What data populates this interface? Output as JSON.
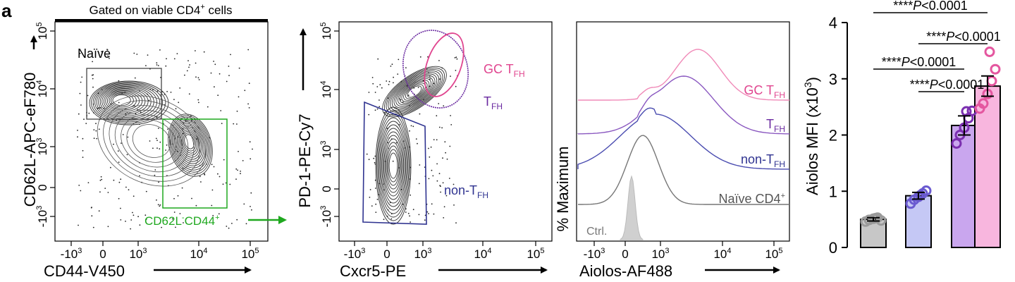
{
  "panel_label": "a",
  "gate_header": "Gated on viable CD4",
  "gate_header_sup": "+",
  "gate_header_tail": " cells",
  "flow1": {
    "ylabel": "CD62L-APC-eF780",
    "xlabel": "CD44-V450",
    "naive_label": "Naïve",
    "effector_label": "CD62L",
    "effector_sup1": "-",
    "effector_mid": "CD44",
    "effector_sup2": "+"
  },
  "flow2": {
    "ylabel": "PD-1-PE-Cy7",
    "xlabel": "Cxcr5-PE",
    "gc_label": "GC T",
    "gc_sub": "FH",
    "tfh_label": "T",
    "tfh_sub": "FH",
    "nontfh_label": "non-T",
    "nontfh_sub": "FH"
  },
  "flow3": {
    "ylabel": "% Maximum",
    "xlabel": "Aiolos-AF488",
    "labels": [
      {
        "text": "GC T",
        "sub": "FH",
        "color": "#e0458f"
      },
      {
        "text": "T",
        "sub": "FH",
        "color": "#6a2aa0"
      },
      {
        "text": "non-T",
        "sub": "FH",
        "color": "#2f3390"
      },
      {
        "text": "Naïve CD4",
        "sup": "+",
        "color": "#555555"
      },
      {
        "text": "Ctrl.",
        "color": "#777777"
      }
    ]
  },
  "flow_ticks": {
    "x": [
      {
        "base": "-10",
        "exp": "3"
      },
      {
        "base": "0",
        "exp": ""
      },
      {
        "base": "10",
        "exp": "3"
      },
      {
        "base": "10",
        "exp": "4"
      },
      {
        "base": "10",
        "exp": "5"
      }
    ],
    "y": [
      {
        "base": "-10",
        "exp": "3"
      },
      {
        "base": "0",
        "exp": ""
      },
      {
        "base": "10",
        "exp": "3"
      },
      {
        "base": "10",
        "exp": "4"
      },
      {
        "base": "10",
        "exp": "5"
      }
    ]
  },
  "chart_data": {
    "type": "bar",
    "ylabel": "Aiolos MFI (x10",
    "ylabel_sup": "3",
    "ylabel_tail": ")",
    "ylim": [
      0,
      4
    ],
    "yticks": [
      0,
      1,
      2,
      3,
      4
    ],
    "categories": [
      "Naïve CD4+",
      "non-TFH",
      "TFH",
      "GC TFH"
    ],
    "values": [
      0.5,
      0.92,
      2.17,
      2.87
    ],
    "errors": [
      0.03,
      0.06,
      0.17,
      0.18
    ],
    "fills": [
      "#c7c7c7",
      "#c5c8f5",
      "#c9a6ee",
      "#f8b6de"
    ],
    "point_colors": [
      "#9a9a9a",
      "#6a5ad0",
      "#7b2fb0",
      "#e4569f"
    ],
    "points": [
      [
        0.46,
        0.49,
        0.51,
        0.53,
        0.48,
        0.52
      ],
      [
        0.78,
        0.85,
        0.9,
        0.96,
        1.01,
        0.93
      ],
      [
        1.85,
        2.0,
        2.13,
        2.3,
        2.43,
        2.42
      ],
      [
        2.47,
        2.56,
        2.73,
        2.96,
        3.17,
        3.48
      ]
    ],
    "significance": [
      {
        "stars": "****",
        "p": "P",
        "rest": "<0.0001",
        "from": 0,
        "to": 3
      },
      {
        "stars": "****",
        "p": "P",
        "rest": "<0.0001",
        "from": 1,
        "to": 3
      },
      {
        "stars": "****",
        "p": "P",
        "rest": "<0.0001",
        "from": 0,
        "to": 2
      },
      {
        "stars": "****",
        "p": "P",
        "rest": "<0.0001",
        "from": 1,
        "to": 2
      }
    ]
  }
}
